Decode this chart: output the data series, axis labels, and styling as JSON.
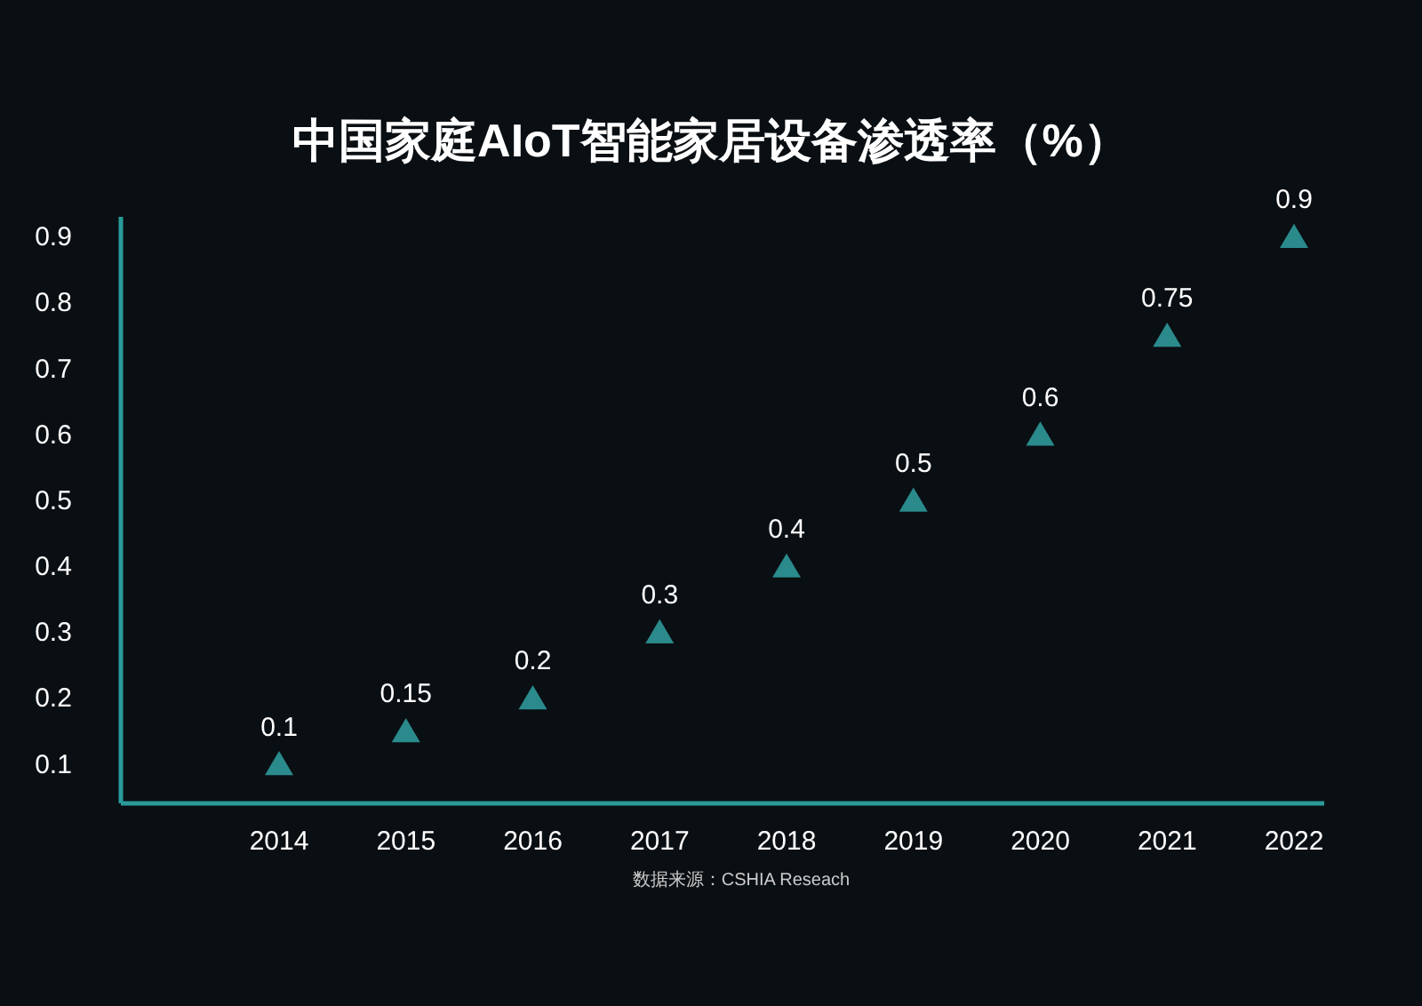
{
  "chart_data": {
    "type": "scatter",
    "title": "中国家庭AIoT智能家居设备渗透率（%）",
    "annotations": [
      "数据来源：CSHIA Reseach"
    ],
    "categories": [
      "2014",
      "2015",
      "2016",
      "2017",
      "2018",
      "2019",
      "2020",
      "2021",
      "2022"
    ],
    "series": [
      {
        "color": "#2a8a8c",
        "values": [
          0.1,
          0.15,
          0.2,
          0.3,
          0.4,
          0.5,
          0.6,
          0.75,
          0.9
        ]
      }
    ],
    "ylim": [
      0.04,
      0.93
    ],
    "yticks": [
      0.1,
      0.2,
      0.3,
      0.4,
      0.5,
      0.6,
      0.7,
      0.8,
      0.9
    ],
    "data_labels": true,
    "marker": "triangle",
    "grid": false
  }
}
